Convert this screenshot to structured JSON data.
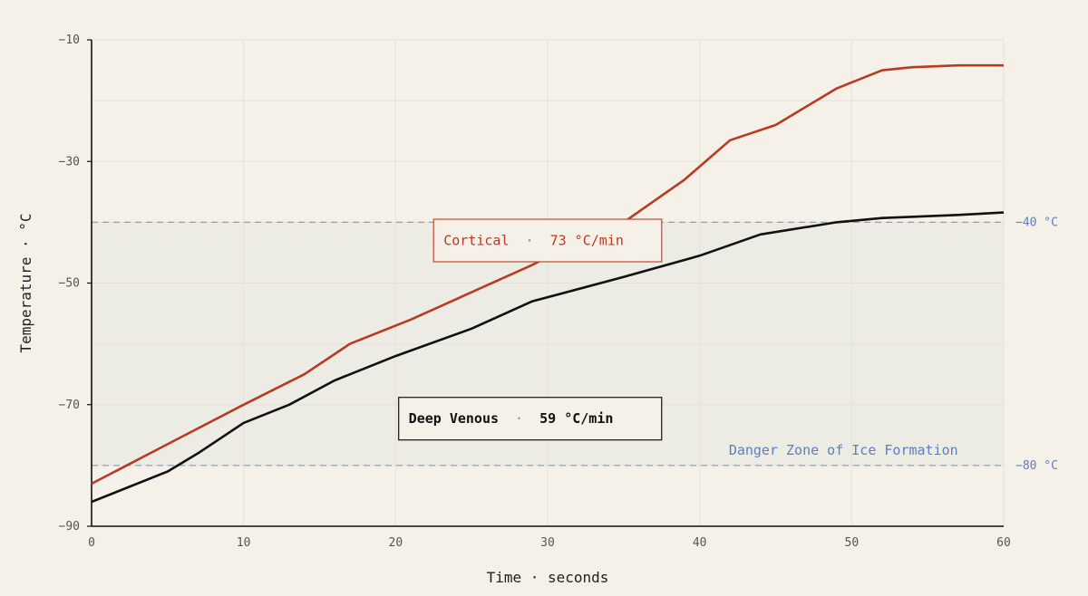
{
  "chart_data": {
    "type": "line",
    "xlabel": "Time · seconds",
    "ylabel": "Temperature · °C",
    "xlim": [
      0,
      60
    ],
    "ylim": [
      -90,
      -10
    ],
    "x_ticks": [
      0,
      10,
      20,
      30,
      40,
      50,
      60
    ],
    "y_ticks": [
      -10,
      -30,
      -50,
      -70,
      -90
    ],
    "grid": true,
    "series": [
      {
        "name": "Cortical",
        "rate": "73 °C/min",
        "color": "#b83a22",
        "x": [
          0,
          5,
          10,
          14,
          17,
          21,
          25,
          29,
          33,
          35,
          39,
          42,
          45,
          49,
          52,
          54,
          57,
          60
        ],
        "y": [
          -83,
          -76.5,
          -70,
          -65,
          -60,
          -56,
          -51.5,
          -47,
          -42,
          -40,
          -33,
          -26.5,
          -24,
          -18,
          -15,
          -14.5,
          -14.2,
          -14.2
        ]
      },
      {
        "name": "Deep Venous",
        "rate": "59 °C/min",
        "color": "#111111",
        "x": [
          0,
          5,
          7,
          10,
          13,
          16,
          20,
          25,
          29,
          35,
          40,
          44,
          49,
          52,
          57,
          60
        ],
        "y": [
          -86,
          -81,
          -78,
          -73,
          -70,
          -66,
          -62,
          -57.5,
          -53,
          -49,
          -45.5,
          -42,
          -40,
          -39.3,
          -38.8,
          -38.4
        ]
      }
    ],
    "reference_lines": [
      {
        "y": -40,
        "label": "−40 °C",
        "color": "#7aa6d8"
      },
      {
        "y": -80,
        "label": "−80 °C",
        "color": "#7aa6d8"
      }
    ],
    "shaded_region": {
      "y_from": -80,
      "y_to": -40,
      "label": "Danger Zone of Ice Formation",
      "color": "#5b7fbf"
    }
  },
  "callouts": [
    {
      "series": "Cortical",
      "name": "Cortical",
      "separator": "·",
      "value": "73 °C/min",
      "border": "#c0573d",
      "text_color": "#b83a22"
    },
    {
      "series": "Deep Venous",
      "name": "Deep Venous",
      "separator": "·",
      "value": "59 °C/min",
      "border": "#222222",
      "text_color": "#111111"
    }
  ]
}
